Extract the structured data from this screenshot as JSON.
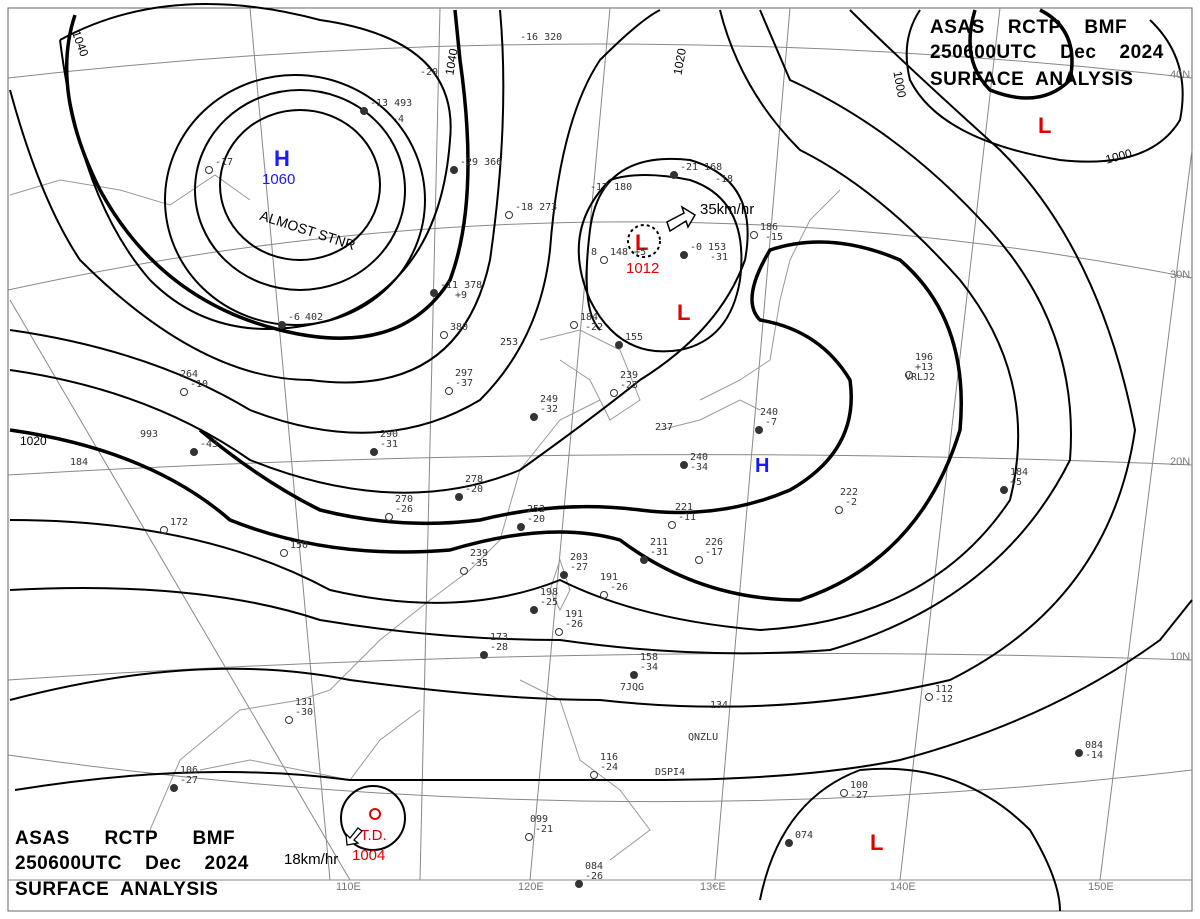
{
  "title_top_right": [
    "ASAS    RCTP    BMF",
    "250600UTC    Dec    2024",
    "SURFACE  ANALYSIS"
  ],
  "title_bottom_left": [
    "ASAS      RCTP      BMF",
    "250600UTC    Dec    2024",
    "SURFACE  ANALYSIS"
  ],
  "latitude_labels": [
    "40N",
    "30N",
    "20N",
    "10N"
  ],
  "longitude_labels": [
    "110E",
    "120E",
    "13€E",
    "140E",
    "150E"
  ],
  "isobar_labels": [
    "1040",
    "1040",
    "1020",
    "1020",
    "1000",
    "1000"
  ],
  "pressure_centers": [
    {
      "type": "H",
      "pressure": "1060",
      "note": "ALMOST STNR",
      "color": "#1a1aff"
    },
    {
      "type": "L",
      "pressure": "1012",
      "motion": "35km/hr",
      "color": "#e00000"
    },
    {
      "type": "L",
      "pressure": "",
      "color": "#e00000"
    },
    {
      "type": "L",
      "pressure": "",
      "color": "#e00000"
    },
    {
      "type": "L",
      "pressure": "",
      "color": "#e00000"
    },
    {
      "type": "H",
      "pressure": "",
      "color": "#1a1aff"
    },
    {
      "type": "T.D.",
      "pressure": "1004",
      "motion": "18km/hr",
      "color": "#e00000"
    }
  ],
  "station_values": [
    "-13 493",
    "-4",
    "-17",
    "-20",
    "-29 366",
    "-16 320",
    "-18 273",
    "-17 180",
    "-21 168",
    "-18",
    "148 +5",
    "-8",
    "-0 153",
    "-31",
    "186",
    "-15",
    "-11 378",
    "+9",
    "380",
    "402",
    "-6",
    "253",
    "184",
    "-22",
    "155",
    "239",
    "-23",
    "249",
    "-32",
    "297",
    "-37",
    "290",
    "-31",
    "264",
    "-10",
    "993",
    "-43",
    "184",
    "172",
    "278",
    "-20",
    "270",
    "-26",
    "252",
    "-20",
    "239",
    "-35",
    "203",
    "-27",
    "191",
    "-26",
    "198",
    "-25",
    "191",
    "-26",
    "173",
    "-28",
    "131",
    "-30",
    "106",
    "-27",
    "116",
    "-24",
    "158",
    "-34",
    "134",
    "112",
    "-12",
    "084",
    "-14",
    "100",
    "-27",
    "074",
    "099",
    "-21",
    "084",
    "-26",
    "221",
    "-11",
    "211",
    "-31",
    "226",
    "-17",
    "240",
    "-7",
    "222",
    "-2",
    "184",
    "+5",
    "196",
    "+13",
    "237",
    "240",
    "-34",
    "150"
  ],
  "station_ids": [
    "7JQG",
    "QNZLU",
    "DSPI4",
    "VRLJ2"
  ]
}
